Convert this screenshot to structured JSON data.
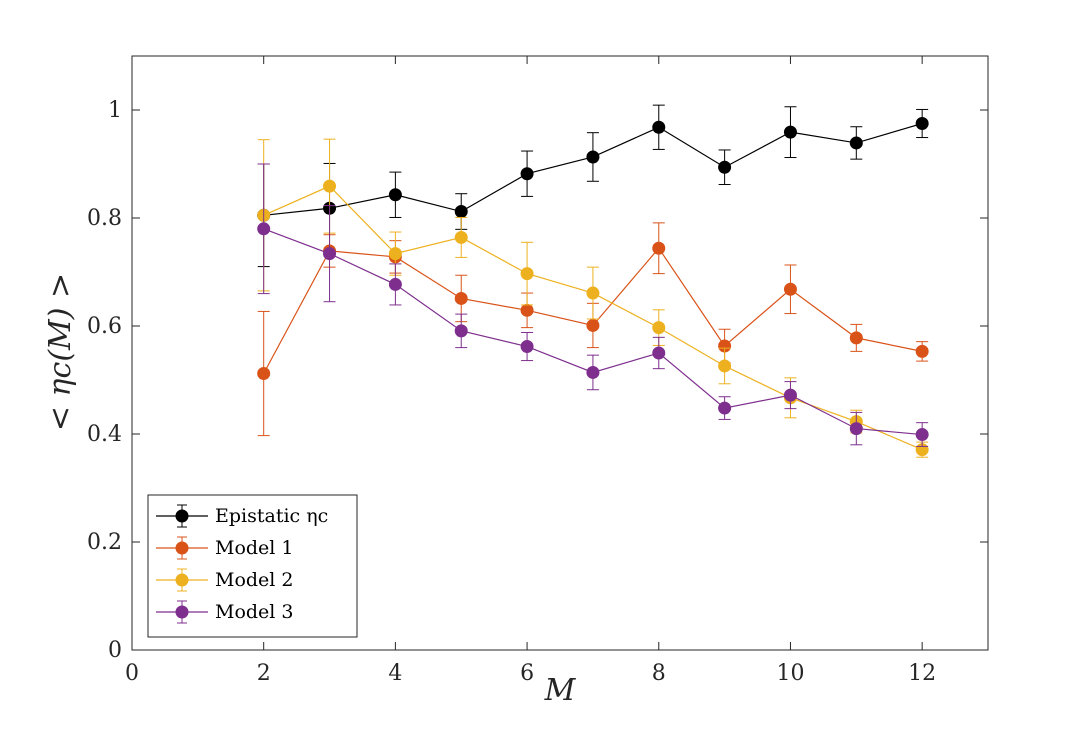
{
  "chart_data": {
    "type": "line",
    "title": "",
    "xlabel": "M",
    "ylabel": "< ηc(M) >",
    "xlim": [
      0,
      13
    ],
    "ylim": [
      0,
      1.1
    ],
    "xticks": [
      0,
      2,
      4,
      6,
      8,
      10,
      12
    ],
    "yticks": [
      0,
      0.2,
      0.4,
      0.6,
      0.8,
      1
    ],
    "ytick_labels": [
      "0",
      "0.2",
      "0.4",
      "0.6",
      "0.8",
      "1"
    ],
    "grid": false,
    "legend_position": "bottom-left",
    "x": [
      2,
      3,
      4,
      5,
      6,
      7,
      8,
      9,
      10,
      11,
      12
    ],
    "series": [
      {
        "name": "Epistatic ηc",
        "color": "#000000",
        "values": [
          0.805,
          0.818,
          0.843,
          0.812,
          0.882,
          0.913,
          0.968,
          0.894,
          0.959,
          0.939,
          0.975
        ],
        "err": [
          0.095,
          0.083,
          0.042,
          0.033,
          0.042,
          0.045,
          0.041,
          0.032,
          0.047,
          0.03,
          0.026
        ]
      },
      {
        "name": "Model 1",
        "color": "#d95319",
        "values": [
          0.512,
          0.739,
          0.728,
          0.651,
          0.629,
          0.601,
          0.744,
          0.563,
          0.668,
          0.578,
          0.553
        ],
        "err": [
          0.115,
          0.03,
          0.03,
          0.043,
          0.032,
          0.041,
          0.047,
          0.031,
          0.045,
          0.025,
          0.018
        ]
      },
      {
        "name": "Model 2",
        "color": "#edb120",
        "values": [
          0.805,
          0.859,
          0.734,
          0.764,
          0.697,
          0.661,
          0.597,
          0.526,
          0.467,
          0.423,
          0.371
        ],
        "err": [
          0.14,
          0.087,
          0.04,
          0.037,
          0.058,
          0.048,
          0.033,
          0.033,
          0.037,
          0.021,
          0.014
        ]
      },
      {
        "name": "Model 3",
        "color": "#7e2f8e",
        "values": [
          0.78,
          0.734,
          0.677,
          0.591,
          0.562,
          0.514,
          0.55,
          0.448,
          0.472,
          0.41,
          0.399
        ],
        "err": [
          0.12,
          0.089,
          0.038,
          0.031,
          0.026,
          0.032,
          0.029,
          0.021,
          0.025,
          0.03,
          0.022
        ]
      }
    ]
  }
}
